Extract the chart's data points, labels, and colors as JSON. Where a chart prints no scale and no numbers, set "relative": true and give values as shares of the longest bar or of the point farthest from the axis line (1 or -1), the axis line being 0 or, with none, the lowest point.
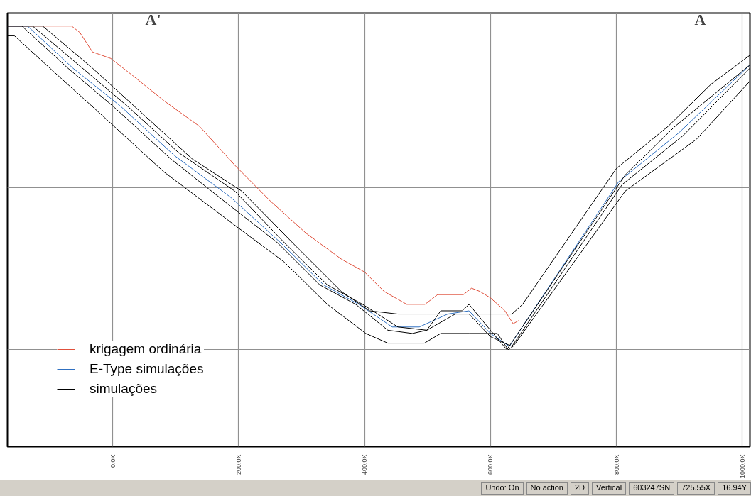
{
  "chart_data": {
    "type": "line",
    "relative": true,
    "xlim": [
      -167,
      1012
    ],
    "xticks": [
      {
        "value": 0,
        "label": "0.0X"
      },
      {
        "value": 200,
        "label": "200.0X"
      },
      {
        "value": 400,
        "label": "400.0X"
      },
      {
        "value": 600,
        "label": "600.0X"
      },
      {
        "value": 800,
        "label": "800.0X"
      },
      {
        "value": 1000,
        "label": "1000.0X"
      }
    ],
    "tick_labels": "x",
    "grid": true,
    "legend": "bottom left",
    "line_style": "solid",
    "marker": "none",
    "series": [
      {
        "name": "krigagem ordinária",
        "color": "#e0503c",
        "x": [
          -167,
          -65,
          -52,
          -32,
          -3,
          30,
          81,
          138,
          194,
          250,
          307,
          363,
          400,
          431,
          467,
          496,
          516,
          557,
          570,
          583,
          600,
          623,
          636,
          645
        ],
        "values": [
          1.0,
          1.0,
          0.98,
          0.92,
          0.9,
          0.85,
          0.77,
          0.69,
          0.57,
          0.46,
          0.36,
          0.28,
          0.24,
          0.18,
          0.14,
          0.14,
          0.17,
          0.17,
          0.19,
          0.18,
          0.16,
          0.12,
          0.08,
          0.09
        ]
      },
      {
        "name": "E-Type simulações",
        "color": "#3070c0",
        "x": [
          -167,
          -135,
          -63,
          14,
          98,
          188,
          267,
          335,
          391,
          444,
          487,
          532,
          566,
          600,
          630,
          804,
          899,
          1012
        ],
        "values": [
          1.0,
          1.0,
          0.87,
          0.75,
          0.6,
          0.47,
          0.33,
          0.2,
          0.14,
          0.07,
          0.07,
          0.11,
          0.12,
          0.05,
          0.01,
          0.52,
          0.67,
          0.88
        ]
      },
      {
        "name": "simulações",
        "color": "#000000",
        "x": [
          -167,
          -111,
          -32,
          47,
          126,
          205,
          296,
          363,
          408,
          453,
          499,
          634,
          651,
          800,
          882,
          950,
          1012
        ],
        "values": [
          1.0,
          1.0,
          0.87,
          0.73,
          0.59,
          0.49,
          0.31,
          0.18,
          0.12,
          0.11,
          0.11,
          0.11,
          0.14,
          0.56,
          0.69,
          0.82,
          0.91
        ]
      },
      {
        "name": null,
        "color": "#000000",
        "x": [
          -167,
          -127,
          -54,
          25,
          104,
          194,
          273,
          341,
          397,
          453,
          499,
          521,
          555,
          566,
          600,
          626,
          814,
          893,
          1012
        ],
        "values": [
          1.0,
          1.0,
          0.88,
          0.75,
          0.61,
          0.49,
          0.33,
          0.2,
          0.14,
          0.07,
          0.06,
          0.12,
          0.12,
          0.14,
          0.06,
          0.0,
          0.54,
          0.69,
          0.88
        ]
      },
      {
        "name": null,
        "color": "#000000",
        "x": [
          -167,
          -144,
          -71,
          2,
          92,
          183,
          262,
          329,
          386,
          437,
          476,
          499,
          544,
          566,
          600,
          634,
          809,
          905,
          1012
        ],
        "values": [
          1.0,
          1.0,
          0.87,
          0.75,
          0.59,
          0.45,
          0.33,
          0.2,
          0.14,
          0.06,
          0.05,
          0.06,
          0.11,
          0.11,
          0.04,
          0.01,
          0.51,
          0.66,
          0.87
        ]
      },
      {
        "name": null,
        "color": "#000000",
        "x": [
          -167,
          -156,
          -94,
          -20,
          81,
          197,
          273,
          341,
          402,
          437,
          495,
          521,
          566,
          611,
          628,
          636,
          814,
          927,
          1012
        ],
        "values": [
          0.97,
          0.97,
          0.86,
          0.73,
          0.55,
          0.38,
          0.27,
          0.14,
          0.05,
          0.02,
          0.02,
          0.05,
          0.05,
          0.05,
          0.0,
          0.01,
          0.49,
          0.65,
          0.83
        ]
      }
    ],
    "annotations": [
      "A'",
      "A",
      "Undo: On",
      "No action",
      "2D",
      "Vertical",
      "603247SN",
      "725.55X",
      "16.94Y"
    ]
  }
}
